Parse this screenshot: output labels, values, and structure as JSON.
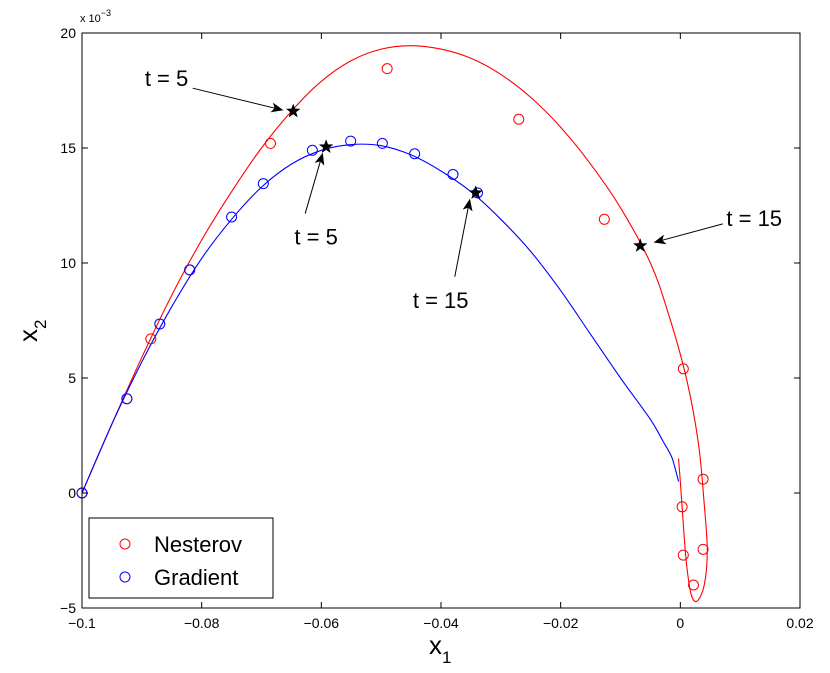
{
  "chart_data": {
    "type": "line",
    "title": "",
    "xlabel": "x",
    "xlabel_sub": "1",
    "ylabel": "x",
    "ylabel_sub": "2",
    "y_multiplier_label": "x 10",
    "y_multiplier_exp": "−3",
    "xlim": [
      -0.1,
      0.02
    ],
    "ylim": [
      -5,
      20
    ],
    "x_ticks": [
      -0.1,
      -0.08,
      -0.06,
      -0.04,
      -0.02,
      0,
      0.02
    ],
    "x_tick_labels": [
      "−0.1",
      "−0.08",
      "−0.06",
      "−0.04",
      "−0.02",
      "0",
      "0.02"
    ],
    "y_ticks": [
      -5,
      0,
      5,
      10,
      15,
      20
    ],
    "y_tick_labels": [
      "−5",
      "0",
      "5",
      "10",
      "15",
      "20"
    ],
    "grid": false,
    "legend_position": "bottom-left",
    "series": [
      {
        "name": "Nesterov",
        "color": "#ff0000",
        "marker": "circle",
        "curve": [
          [
            -0.1,
            0
          ],
          [
            -0.095,
            3.0
          ],
          [
            -0.09,
            5.9
          ],
          [
            -0.085,
            8.6
          ],
          [
            -0.08,
            11.0
          ],
          [
            -0.075,
            13.1
          ],
          [
            -0.07,
            15.0
          ],
          [
            -0.065,
            16.6
          ],
          [
            -0.06,
            17.9
          ],
          [
            -0.055,
            18.8
          ],
          [
            -0.05,
            19.3
          ],
          [
            -0.045,
            19.45
          ],
          [
            -0.04,
            19.3
          ],
          [
            -0.035,
            18.9
          ],
          [
            -0.03,
            18.2
          ],
          [
            -0.025,
            17.2
          ],
          [
            -0.02,
            15.9
          ],
          [
            -0.015,
            14.3
          ],
          [
            -0.01,
            12.4
          ],
          [
            -0.005,
            10.0
          ],
          [
            -0.002,
            7.8
          ],
          [
            0.001,
            5.0
          ],
          [
            0.003,
            2.2
          ],
          [
            0.004,
            -0.5
          ],
          [
            0.0045,
            -2.5
          ],
          [
            0.004,
            -4.0
          ],
          [
            0.0028,
            -4.7
          ],
          [
            0.0018,
            -4.4
          ],
          [
            0.001,
            -3.0
          ],
          [
            0.0004,
            -1.0
          ],
          [
            0.0,
            0.5
          ],
          [
            -0.0003,
            1.5
          ]
        ],
        "markers": [
          [
            -0.1,
            0
          ],
          [
            -0.0925,
            4.1
          ],
          [
            -0.0885,
            6.7
          ],
          [
            -0.082,
            9.7
          ],
          [
            -0.0685,
            15.2
          ],
          [
            -0.049,
            18.45
          ],
          [
            -0.027,
            16.25
          ],
          [
            -0.0127,
            11.9
          ],
          [
            0.0005,
            5.4
          ],
          [
            0.0038,
            0.6
          ],
          [
            0.0003,
            -0.6
          ],
          [
            0.0005,
            -2.7
          ],
          [
            0.0022,
            -4.0
          ],
          [
            0.0038,
            -2.45
          ]
        ],
        "star_points": [
          [
            -0.0647,
            16.6
          ],
          [
            -0.0067,
            10.75
          ]
        ]
      },
      {
        "name": "Gradient",
        "color": "#0000ff",
        "marker": "circle",
        "curve": [
          [
            -0.1,
            0
          ],
          [
            -0.095,
            3.0
          ],
          [
            -0.09,
            5.7
          ],
          [
            -0.085,
            8.1
          ],
          [
            -0.08,
            10.2
          ],
          [
            -0.075,
            11.9
          ],
          [
            -0.07,
            13.3
          ],
          [
            -0.065,
            14.3
          ],
          [
            -0.06,
            14.9
          ],
          [
            -0.055,
            15.15
          ],
          [
            -0.05,
            15.1
          ],
          [
            -0.045,
            14.7
          ],
          [
            -0.04,
            14.0
          ],
          [
            -0.035,
            13.1
          ],
          [
            -0.03,
            11.9
          ],
          [
            -0.025,
            10.5
          ],
          [
            -0.02,
            8.8
          ],
          [
            -0.015,
            6.9
          ],
          [
            -0.01,
            5.0
          ],
          [
            -0.005,
            3.2
          ],
          [
            -0.003,
            2.3
          ],
          [
            -0.0015,
            1.6
          ],
          [
            -0.0008,
            1.0
          ],
          [
            -0.0003,
            0.5
          ]
        ],
        "markers": [
          [
            -0.1,
            0
          ],
          [
            -0.0925,
            4.1
          ],
          [
            -0.087,
            7.35
          ],
          [
            -0.082,
            9.7
          ],
          [
            -0.075,
            12.0
          ],
          [
            -0.0697,
            13.45
          ],
          [
            -0.0615,
            14.9
          ],
          [
            -0.0551,
            15.3
          ],
          [
            -0.0498,
            15.2
          ],
          [
            -0.0444,
            14.75
          ],
          [
            -0.038,
            13.85
          ],
          [
            -0.0339,
            13.05
          ]
        ],
        "star_points": [
          [
            -0.0592,
            15.05
          ],
          [
            -0.0342,
            13.05
          ]
        ]
      }
    ],
    "annotations": [
      {
        "text": "t = 5",
        "text_at": [
          -0.0895,
          17.7
        ],
        "arrow_from": [
          -0.0815,
          17.6
        ],
        "arrow_to": [
          -0.0665,
          16.65
        ]
      },
      {
        "text": "t = 5",
        "text_at": [
          -0.0645,
          10.8
        ],
        "arrow_from": [
          -0.0627,
          12.15
        ],
        "arrow_to": [
          -0.0598,
          14.75
        ]
      },
      {
        "text": "t = 15",
        "text_at": [
          -0.0447,
          8.05
        ],
        "arrow_from": [
          -0.0377,
          9.4
        ],
        "arrow_to": [
          -0.0352,
          12.75
        ]
      },
      {
        "text": "t = 15",
        "text_at": [
          0.0077,
          11.6
        ],
        "arrow_from": [
          0.0071,
          11.7
        ],
        "arrow_to": [
          -0.0043,
          10.9
        ]
      }
    ]
  }
}
